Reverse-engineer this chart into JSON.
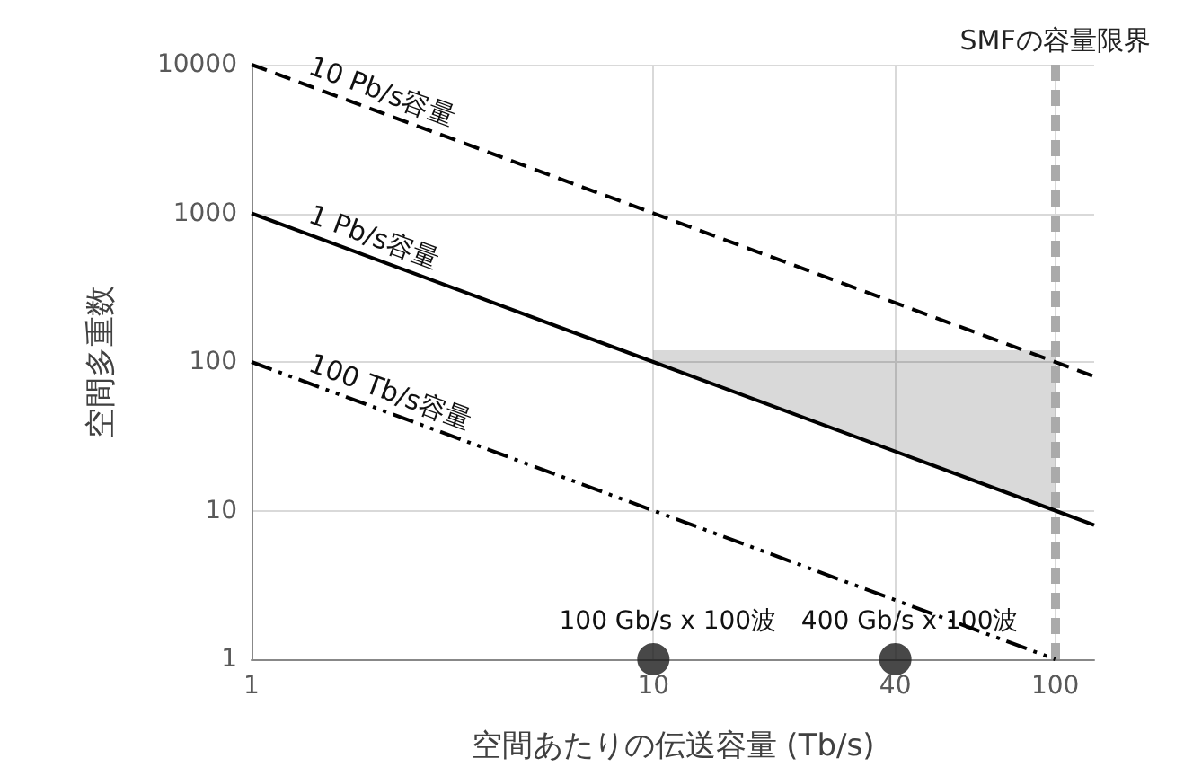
{
  "chart_data": {
    "type": "line",
    "xlabel": "空間あたりの伝送容量 (Tb/s)",
    "ylabel": "空間多重数",
    "log": "xy",
    "grid": true,
    "legend": false,
    "xlim": [
      1,
      125
    ],
    "xticks": [
      1,
      10,
      40,
      100
    ],
    "ylim": [
      1,
      10000
    ],
    "yticks": [
      1,
      10,
      100,
      1000,
      10000
    ],
    "series": [
      {
        "name": "10 Pb/s容量",
        "type": "line",
        "color": "#000000",
        "line_style": "dashed",
        "marker": "none",
        "x": [
          1,
          125
        ],
        "values": [
          10000,
          80
        ]
      },
      {
        "name": "1 Pb/s容量",
        "type": "line",
        "color": "#000000",
        "line_style": "solid",
        "marker": "none",
        "x": [
          1,
          10,
          100,
          125
        ],
        "values": [
          1000,
          100,
          10,
          8
        ],
        "lower": [
          null,
          100,
          10,
          null
        ],
        "upper": [
          null,
          120,
          120,
          null
        ]
      },
      {
        "name": "100 Tb/s容量",
        "type": "line",
        "color": "#000000",
        "line_style": "dashdot",
        "marker": "none",
        "x": [
          1,
          100
        ],
        "values": [
          100,
          1
        ]
      },
      {
        "type": "scatter",
        "color": "#1a1a1a",
        "marker": "circle",
        "x": [
          10,
          40
        ],
        "values": [
          1,
          1
        ]
      }
    ],
    "ref_lines": [
      {
        "axis": "x",
        "value": 100,
        "label": "SMFの容量限界",
        "color": "#aaaaaa",
        "line_style": "dashed"
      }
    ],
    "annotations": [
      {
        "text": "100 Gb/s x 100波",
        "x": 10,
        "y": 1
      },
      {
        "text": "400 Gb/s x 100波",
        "x": 40,
        "y": 1
      }
    ]
  }
}
